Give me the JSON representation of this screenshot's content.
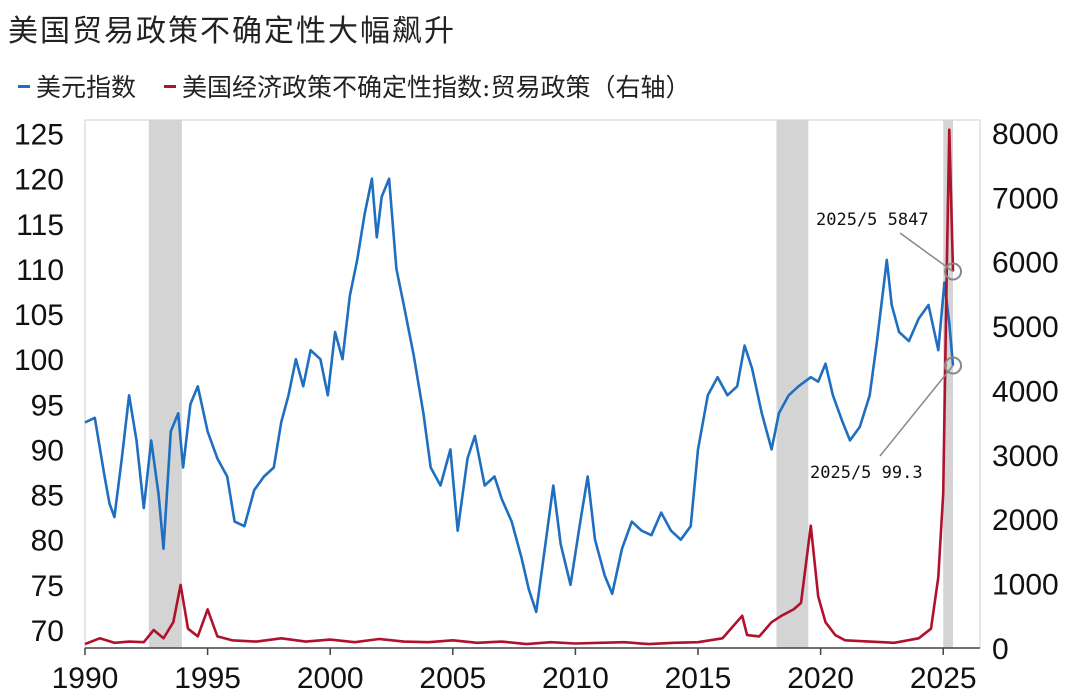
{
  "chart_data": {
    "type": "line",
    "title": "美国贸易政策不确定性大幅飙升",
    "legend": [
      "美元指数",
      "美国经济政策不确定性指数:贸易政策（右轴）"
    ],
    "legend_colors": [
      "#1f6fc0",
      "#b0122c"
    ],
    "x_ticks": [
      "1990",
      "1995",
      "2000",
      "2005",
      "2010",
      "2015",
      "2020",
      "2025"
    ],
    "xlim": [
      1990,
      2026.5
    ],
    "y_left_ticks": [
      "125",
      "120",
      "115",
      "110",
      "105",
      "100",
      "95",
      "90",
      "85",
      "80",
      "75",
      "70"
    ],
    "y_left_lim": [
      68,
      126.5
    ],
    "y_right_ticks": [
      "8000",
      "7000",
      "6000",
      "5000",
      "4000",
      "3000",
      "2000",
      "1000",
      "0"
    ],
    "y_right_lim": [
      0,
      8200
    ],
    "recessions": [
      [
        1992.6,
        1993.95
      ],
      [
        2018.2,
        2019.5
      ],
      [
        2025.0,
        2025.4
      ]
    ],
    "series": [
      {
        "name": "美元指数",
        "axis": "left",
        "color": "#1f6fc0",
        "points": [
          [
            1990.0,
            93.0
          ],
          [
            1990.4,
            93.5
          ],
          [
            1990.8,
            87.0
          ],
          [
            1991.0,
            84.0
          ],
          [
            1991.2,
            82.5
          ],
          [
            1991.5,
            89.0
          ],
          [
            1991.8,
            96.0
          ],
          [
            1992.1,
            91.0
          ],
          [
            1992.4,
            83.5
          ],
          [
            1992.7,
            91.0
          ],
          [
            1993.0,
            85.0
          ],
          [
            1993.2,
            79.0
          ],
          [
            1993.5,
            92.0
          ],
          [
            1993.8,
            94.0
          ],
          [
            1994.0,
            88.0
          ],
          [
            1994.3,
            95.0
          ],
          [
            1994.6,
            97.0
          ],
          [
            1995.0,
            92.0
          ],
          [
            1995.4,
            89.0
          ],
          [
            1995.8,
            87.0
          ],
          [
            1996.1,
            82.0
          ],
          [
            1996.5,
            81.5
          ],
          [
            1996.9,
            85.5
          ],
          [
            1997.3,
            87.0
          ],
          [
            1997.7,
            88.0
          ],
          [
            1998.0,
            93.0
          ],
          [
            1998.3,
            96.0
          ],
          [
            1998.6,
            100.0
          ],
          [
            1998.9,
            97.0
          ],
          [
            1999.2,
            101.0
          ],
          [
            1999.6,
            100.0
          ],
          [
            1999.9,
            96.0
          ],
          [
            2000.2,
            103.0
          ],
          [
            2000.5,
            100.0
          ],
          [
            2000.8,
            107.0
          ],
          [
            2001.1,
            111.0
          ],
          [
            2001.4,
            116.0
          ],
          [
            2001.7,
            120.0
          ],
          [
            2001.9,
            113.5
          ],
          [
            2002.1,
            118.0
          ],
          [
            2002.4,
            120.0
          ],
          [
            2002.7,
            110.0
          ],
          [
            2003.0,
            106.0
          ],
          [
            2003.4,
            100.5
          ],
          [
            2003.8,
            94.0
          ],
          [
            2004.1,
            88.0
          ],
          [
            2004.5,
            86.0
          ],
          [
            2004.9,
            90.0
          ],
          [
            2005.2,
            81.0
          ],
          [
            2005.6,
            89.0
          ],
          [
            2005.9,
            91.5
          ],
          [
            2006.3,
            86.0
          ],
          [
            2006.7,
            87.0
          ],
          [
            2007.0,
            84.5
          ],
          [
            2007.4,
            82.0
          ],
          [
            2007.8,
            78.0
          ],
          [
            2008.1,
            74.5
          ],
          [
            2008.4,
            72.0
          ],
          [
            2008.8,
            80.0
          ],
          [
            2009.1,
            86.0
          ],
          [
            2009.4,
            79.5
          ],
          [
            2009.8,
            75.0
          ],
          [
            2010.2,
            82.0
          ],
          [
            2010.5,
            87.0
          ],
          [
            2010.8,
            80.0
          ],
          [
            2011.2,
            76.0
          ],
          [
            2011.5,
            74.0
          ],
          [
            2011.9,
            79.0
          ],
          [
            2012.3,
            82.0
          ],
          [
            2012.7,
            81.0
          ],
          [
            2013.1,
            80.5
          ],
          [
            2013.5,
            83.0
          ],
          [
            2013.9,
            81.0
          ],
          [
            2014.3,
            80.0
          ],
          [
            2014.7,
            81.5
          ],
          [
            2015.0,
            90.0
          ],
          [
            2015.4,
            96.0
          ],
          [
            2015.8,
            98.0
          ],
          [
            2016.2,
            96.0
          ],
          [
            2016.6,
            97.0
          ],
          [
            2016.9,
            101.5
          ],
          [
            2017.2,
            99.0
          ],
          [
            2017.6,
            94.0
          ],
          [
            2018.0,
            90.0
          ],
          [
            2018.3,
            94.0
          ],
          [
            2018.7,
            96.0
          ],
          [
            2019.1,
            97.0
          ],
          [
            2019.6,
            98.0
          ],
          [
            2019.9,
            97.5
          ],
          [
            2020.2,
            99.5
          ],
          [
            2020.5,
            96.0
          ],
          [
            2020.9,
            93.0
          ],
          [
            2021.2,
            91.0
          ],
          [
            2021.6,
            92.5
          ],
          [
            2022.0,
            96.0
          ],
          [
            2022.3,
            102.0
          ],
          [
            2022.7,
            111.0
          ],
          [
            2022.9,
            106.0
          ],
          [
            2023.2,
            103.0
          ],
          [
            2023.6,
            102.0
          ],
          [
            2024.0,
            104.5
          ],
          [
            2024.4,
            106.0
          ],
          [
            2024.8,
            101.0
          ],
          [
            2025.05,
            108.5
          ],
          [
            2025.25,
            104.0
          ],
          [
            2025.4,
            99.3
          ]
        ]
      },
      {
        "name": "美国经济政策不确定性指数:贸易政策（右轴）",
        "axis": "right",
        "color": "#b0122c",
        "points": [
          [
            1990.0,
            60
          ],
          [
            1990.6,
            150
          ],
          [
            1991.2,
            80
          ],
          [
            1991.8,
            100
          ],
          [
            1992.4,
            90
          ],
          [
            1992.8,
            280
          ],
          [
            1993.2,
            150
          ],
          [
            1993.6,
            400
          ],
          [
            1993.9,
            980
          ],
          [
            1994.2,
            300
          ],
          [
            1994.6,
            180
          ],
          [
            1995.0,
            600
          ],
          [
            1995.4,
            180
          ],
          [
            1996.0,
            120
          ],
          [
            1997.0,
            100
          ],
          [
            1998.0,
            150
          ],
          [
            1999.0,
            100
          ],
          [
            2000.0,
            130
          ],
          [
            2001.0,
            90
          ],
          [
            2002.0,
            140
          ],
          [
            2003.0,
            100
          ],
          [
            2004.0,
            90
          ],
          [
            2005.0,
            120
          ],
          [
            2006.0,
            80
          ],
          [
            2007.0,
            100
          ],
          [
            2008.0,
            60
          ],
          [
            2009.0,
            90
          ],
          [
            2010.0,
            70
          ],
          [
            2011.0,
            80
          ],
          [
            2012.0,
            90
          ],
          [
            2013.0,
            60
          ],
          [
            2014.0,
            80
          ],
          [
            2015.0,
            90
          ],
          [
            2016.0,
            150
          ],
          [
            2016.8,
            500
          ],
          [
            2017.0,
            200
          ],
          [
            2017.5,
            180
          ],
          [
            2018.0,
            400
          ],
          [
            2018.4,
            500
          ],
          [
            2018.9,
            600
          ],
          [
            2019.2,
            700
          ],
          [
            2019.6,
            1900
          ],
          [
            2019.9,
            800
          ],
          [
            2020.2,
            400
          ],
          [
            2020.6,
            200
          ],
          [
            2021.0,
            120
          ],
          [
            2022.0,
            100
          ],
          [
            2023.0,
            80
          ],
          [
            2024.0,
            150
          ],
          [
            2024.5,
            300
          ],
          [
            2024.8,
            1100
          ],
          [
            2025.0,
            2400
          ],
          [
            2025.15,
            6000
          ],
          [
            2025.25,
            8050
          ],
          [
            2025.4,
            5847
          ]
        ]
      }
    ],
    "annotations": [
      {
        "text": "2025/5  5847",
        "x": 2025.4,
        "value": 5847,
        "axis": "right"
      },
      {
        "text": "2025/5  99.3",
        "x": 2025.4,
        "value": 99.3,
        "axis": "left"
      }
    ]
  }
}
